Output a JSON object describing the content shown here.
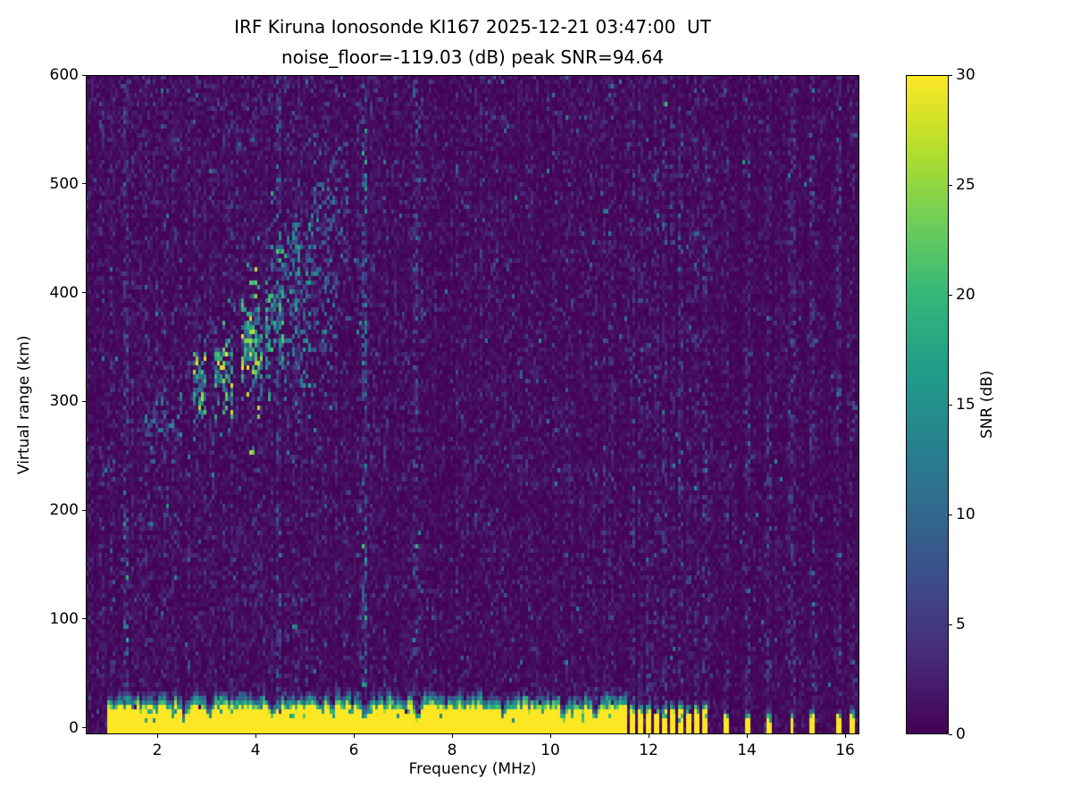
{
  "figure": {
    "background_color": "#ffffff",
    "text_color": "#000000"
  },
  "chart_data": {
    "type": "heatmap",
    "title": "IRF Kiruna Ionosonde KI167 2025-12-21 03:47:00  UT",
    "subtitle": "noise_floor=-119.03 (dB) peak SNR=94.64",
    "xlabel": "Frequency (MHz)",
    "ylabel": "Virtual range (km)",
    "colorbar_label": "SNR (dB)",
    "xlim": [
      0.545,
      16.29
    ],
    "ylim": [
      -6,
      600
    ],
    "clim": [
      0,
      30
    ],
    "xticks": [
      2,
      4,
      6,
      8,
      10,
      12,
      14,
      16
    ],
    "yticks": [
      0,
      100,
      200,
      300,
      400,
      500,
      600
    ],
    "colorbar_ticks": [
      0,
      5,
      10,
      15,
      20,
      25,
      30
    ],
    "colormap": "viridis",
    "colormap_anchors": [
      "#440154",
      "#482878",
      "#3e4989",
      "#31688e",
      "#26828e",
      "#1f9e89",
      "#35b779",
      "#6ece58",
      "#b5de2b",
      "#fde725"
    ],
    "features": {
      "background": {
        "mean_noise_db": 1.0,
        "column_variation": 0.5
      },
      "ground_clutter": {
        "snr_db": 30,
        "solid_top_km": 20,
        "edge_top_km": 34,
        "bottom_km": -6,
        "continuous_range_mhz": [
          0.97,
          11.57
        ],
        "dense_pulses_mhz": [
          11.68,
          11.84,
          12.0,
          12.16,
          12.32,
          12.48,
          12.64,
          12.8,
          12.96,
          13.12
        ],
        "sparse_pulses_mhz": [
          13.55,
          14.0,
          14.45,
          14.9,
          15.3,
          15.85,
          16.12
        ],
        "pulse_width_mhz": 0.1,
        "notch_freqs_mhz": [
          2.55,
          3.05,
          4.35,
          5.55,
          6.2,
          7.3,
          9.05,
          10.25,
          10.9
        ]
      },
      "echo_trace": {
        "patches": [
          {
            "f0": 1.72,
            "f1": 2.02,
            "y_km": 272,
            "spread_km": 16,
            "density": 0.38,
            "snr_min": 5,
            "snr_max": 16
          },
          {
            "f0": 2.08,
            "f1": 2.5,
            "y_km": 284,
            "spread_km": 18,
            "density": 0.33,
            "snr_min": 5,
            "snr_max": 15
          },
          {
            "f0": 2.72,
            "f1": 3.02,
            "y_km": 318,
            "spread_km": 22,
            "density": 0.7,
            "snr_min": 8,
            "snr_max": 30
          },
          {
            "f0": 3.18,
            "f1": 3.52,
            "y_km": 322,
            "spread_km": 24,
            "density": 0.7,
            "snr_min": 8,
            "snr_max": 30
          },
          {
            "f0": 3.72,
            "f1": 4.12,
            "y_km": 352,
            "spread_km": 30,
            "density": 0.72,
            "snr_min": 8,
            "snr_max": 30
          },
          {
            "f0": 4.22,
            "f1": 4.62,
            "y_km": 380,
            "spread_km": 42,
            "density": 0.55,
            "snr_min": 6,
            "snr_max": 22
          },
          {
            "f0": 4.62,
            "f1": 5.12,
            "y_km": 402,
            "spread_km": 52,
            "density": 0.45,
            "snr_min": 5,
            "snr_max": 18
          },
          {
            "f0": 5.1,
            "f1": 5.62,
            "y_km": 425,
            "spread_km": 55,
            "density": 0.32,
            "snr_min": 5,
            "snr_max": 15
          },
          {
            "f0": 5.4,
            "f1": 5.95,
            "y_km": 455,
            "spread_km": 58,
            "density": 0.18,
            "snr_min": 4,
            "snr_max": 12
          }
        ]
      },
      "noise_stripes": [
        {
          "f_mhz": 1.35,
          "width_mhz": 0.05,
          "extra_db": 1.5
        },
        {
          "f_mhz": 4.45,
          "width_mhz": 0.05,
          "extra_db": 1.2
        },
        {
          "f_mhz": 6.2,
          "width_mhz": 0.07,
          "extra_db": 4.0
        },
        {
          "f_mhz": 7.25,
          "width_mhz": 0.05,
          "extra_db": 1.2
        },
        {
          "f_mhz": 9.5,
          "width_mhz": 0.04,
          "extra_db": 1.0
        }
      ]
    }
  }
}
